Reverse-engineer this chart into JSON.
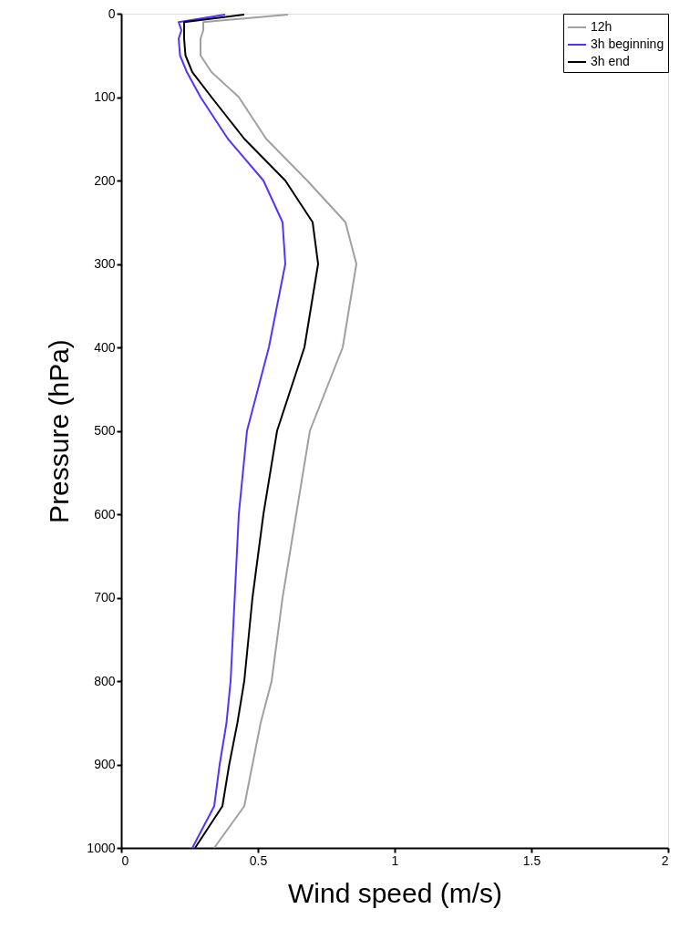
{
  "chart_data": {
    "type": "line",
    "xlabel": "Wind speed (m/s)",
    "ylabel": "Pressure (hPa)",
    "xlim": [
      0,
      2
    ],
    "xticks": [
      0,
      0.5,
      1,
      1.5,
      2
    ],
    "ylim": [
      1000,
      0
    ],
    "yticks": [
      0,
      100,
      200,
      300,
      400,
      500,
      600,
      700,
      800,
      900,
      1000
    ],
    "grid": false,
    "legend": "top right",
    "marker": "none",
    "line_style": "solid",
    "series": [
      {
        "name": "12h",
        "color": "#a0a0a0",
        "x": [
          0.61,
          0.3,
          0.3,
          0.29,
          0.29,
          0.33,
          0.43,
          0.53,
          0.68,
          0.82,
          0.86,
          0.81,
          0.69,
          0.64,
          0.59,
          0.55,
          0.51,
          0.48,
          0.45,
          0.34
        ],
        "values": [
          1,
          10,
          20,
          30,
          50,
          70,
          100,
          150,
          200,
          250,
          300,
          400,
          500,
          600,
          700,
          800,
          850,
          900,
          950,
          1000
        ]
      },
      {
        "name": "3h beginning",
        "color": "#5533ff",
        "x": [
          0.38,
          0.21,
          0.22,
          0.21,
          0.215,
          0.24,
          0.29,
          0.39,
          0.52,
          0.59,
          0.6,
          0.54,
          0.46,
          0.43,
          0.415,
          0.4,
          0.385,
          0.36,
          0.34,
          0.26
        ],
        "values": [
          1,
          10,
          20,
          30,
          50,
          70,
          100,
          150,
          200,
          250,
          300,
          400,
          500,
          600,
          700,
          800,
          850,
          900,
          950,
          1000
        ]
      },
      {
        "name": "3h end",
        "color": "#000000",
        "x": [
          0.45,
          0.23,
          0.23,
          0.23,
          0.235,
          0.26,
          0.33,
          0.45,
          0.6,
          0.7,
          0.72,
          0.67,
          0.57,
          0.52,
          0.48,
          0.45,
          0.425,
          0.395,
          0.37,
          0.27
        ],
        "values": [
          1,
          10,
          20,
          30,
          50,
          70,
          100,
          150,
          200,
          250,
          300,
          400,
          500,
          600,
          700,
          800,
          850,
          900,
          950,
          1000
        ]
      }
    ]
  }
}
